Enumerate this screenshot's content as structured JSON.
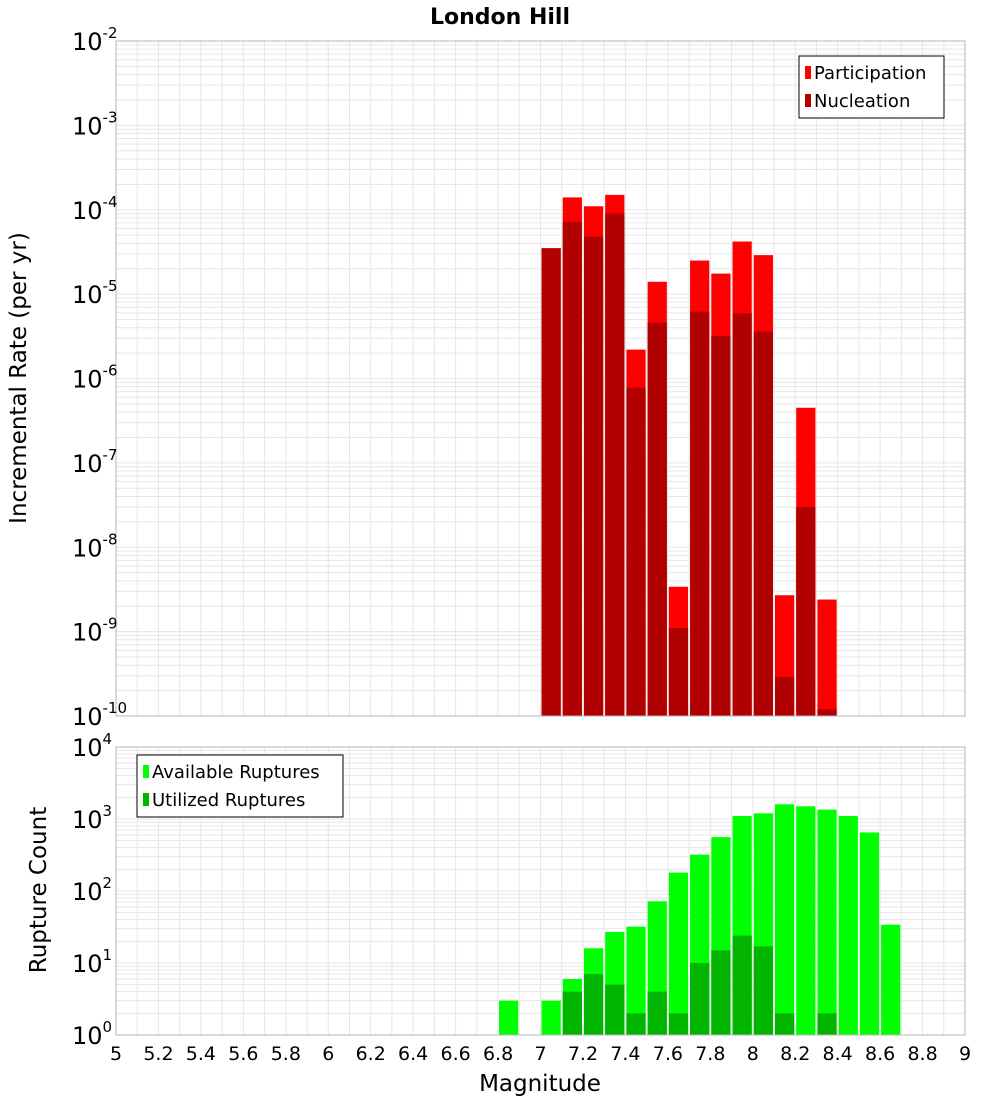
{
  "title": "London Hill",
  "colors": {
    "participation": "#ff0000",
    "nucleation": "#b00000",
    "available": "#00ff00",
    "utilized": "#00b400",
    "grid": "#e6e6e6",
    "frame": "#b4b4b4"
  },
  "chart_data": [
    {
      "type": "bar",
      "panel": "top",
      "ylabel": "Incremental Rate (per yr)",
      "yscale": "log",
      "ylim_exp": [
        -10,
        -2
      ],
      "xlim": [
        5,
        9
      ],
      "bin_width": 0.1,
      "legend": {
        "placement": "top-right",
        "entries": [
          "Participation",
          "Nucleation"
        ]
      },
      "x": [
        7.05,
        7.15,
        7.25,
        7.35,
        7.45,
        7.55,
        7.65,
        7.75,
        7.85,
        7.95,
        8.05,
        8.15,
        8.25,
        8.35
      ],
      "series": [
        {
          "name": "Participation",
          "values": [
            3.5e-05,
            0.00014,
            0.00011,
            0.00015,
            2.2e-06,
            1.4e-05,
            3.4e-09,
            2.5e-05,
            1.75e-05,
            4.2e-05,
            2.9e-05,
            2.7e-09,
            4.5e-07,
            2.4e-09
          ]
        },
        {
          "name": "Nucleation",
          "values": [
            3.5e-05,
            7.2e-05,
            4.8e-05,
            9e-05,
            7.8e-07,
            4.6e-06,
            1.1e-09,
            6.2e-06,
            3.2e-06,
            5.9e-06,
            3.6e-06,
            2.9e-10,
            3e-08,
            1.2e-10
          ]
        }
      ]
    },
    {
      "type": "bar",
      "panel": "bottom",
      "xlabel": "Magnitude",
      "ylabel": "Rupture Count",
      "yscale": "log",
      "ylim_exp": [
        0,
        4
      ],
      "xlim": [
        5,
        9
      ],
      "bin_width": 0.1,
      "legend": {
        "placement": "top-left",
        "entries": [
          "Available Ruptures",
          "Utilized Ruptures"
        ]
      },
      "x": [
        6.85,
        7.05,
        7.15,
        7.25,
        7.35,
        7.45,
        7.55,
        7.65,
        7.75,
        7.85,
        7.95,
        8.05,
        8.15,
        8.25,
        8.35,
        8.45,
        8.55,
        8.65
      ],
      "series": [
        {
          "name": "Available Ruptures",
          "values": [
            3,
            3,
            6,
            16,
            27,
            32,
            72,
            180,
            320,
            560,
            1100,
            1200,
            1600,
            1500,
            1350,
            1100,
            650,
            34
          ]
        },
        {
          "name": "Utilized Ruptures",
          "values": [
            0,
            1,
            4,
            7,
            5,
            2,
            4,
            2,
            10,
            15,
            24,
            17,
            2,
            1,
            2,
            0,
            0,
            0
          ]
        }
      ]
    }
  ],
  "x_ticks": [
    "5",
    "5.2",
    "5.4",
    "5.6",
    "5.8",
    "6",
    "6.2",
    "6.4",
    "6.6",
    "6.8",
    "7",
    "7.2",
    "7.4",
    "7.6",
    "7.8",
    "8",
    "8.2",
    "8.4",
    "8.6",
    "8.8",
    "9"
  ],
  "top_y_ticks": {
    "base": "10",
    "exponents": [
      "-10",
      "-9",
      "-8",
      "-7",
      "-6",
      "-5",
      "-4",
      "-3",
      "-2"
    ]
  },
  "bottom_y_ticks": {
    "base": "10",
    "exponents": [
      "0",
      "1",
      "2",
      "3",
      "4"
    ]
  }
}
